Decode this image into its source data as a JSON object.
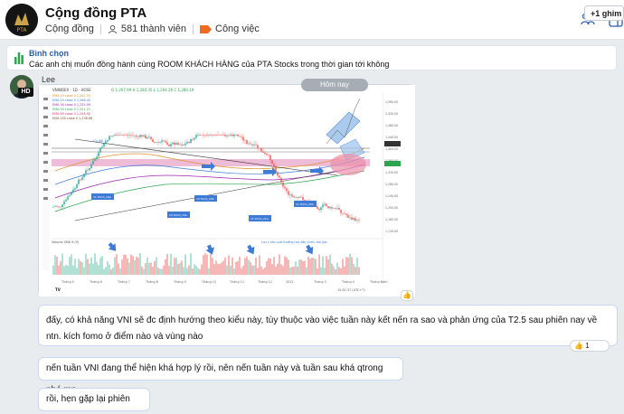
{
  "header": {
    "title": "Cộng đồng PTA",
    "type_label": "Cộng đồng",
    "members": "581 thành viên",
    "tasks": "Công việc",
    "logo_text": "PTA",
    "tasks_color": "#f26a21"
  },
  "poll": {
    "title": "Bình chọn",
    "question": "Các anh chị muốn đồng hành cùng ROOM KHÁCH HÀNG  của PTA Stocks trong thời gian tới không",
    "more": "+1 ghim"
  },
  "message": {
    "sender": "Lee",
    "avatar_badge": "HD",
    "date_divider": "Hôm nay",
    "image_reaction": "👍",
    "texts": [
      "đấy, có khả năng VNI sẽ đc định hướng theo kiểu này, tùy thuộc vào việc tuần này kết nến ra sao và phản ứng của T2.5 sau phiên nay về ntn. kích fomo ở điểm nào và vùng nào",
      "nến tuần VNI đang thể hiện khá hợp lý rồi, nên nến tuần này và tuần sau khá qtrong nhé mn",
      "rồi, hẹn gặp lại phiên mai"
    ],
    "reaction": "👍",
    "reaction_count": "1"
  },
  "chart_image": {
    "symbol_line": "VNINDEX · 1D · HOSE",
    "ohlc_line": "O 1,267.99  H 1,284.35  L 1,264.26  C 1,280.19",
    "ma_lines": [
      "EMA 10 close 0  1,262.55",
      "EMA 20 close 0  1,268.42",
      "EMA 34 close 0  1,255.09",
      "EMA 50 close 0  1,251.21",
      "EMA 89 close 0  1,248.92",
      "EMA 200 close 0  1,238.88"
    ],
    "annot_tl": "Ưu đãi 1",
    "annot_boxes": [
      "13 thinh_18a",
      "13 thinh_19a",
      "11 thinh_21a",
      "11 thinh_20a",
      "11 thinh_18a"
    ],
    "volume_label": "Volume  SMA 9 (9)",
    "volume_note": "Lưu ý xác suất thường hay đảo chiều vào giai",
    "x_ticks": [
      "Tháng 5",
      "Tháng 6",
      "Tháng 7",
      "Tháng 8",
      "Tháng 9",
      "Tháng 10",
      "Tháng 11",
      "Tháng 12",
      "2022",
      "Tháng 3",
      "Tháng 4",
      "Tháng Năm"
    ],
    "y_ticks": [
      "1,560.00",
      "1,520.00",
      "1,480.00",
      "1,440.00",
      "1,400.00",
      "1,360.00",
      "1,320.00",
      "1,280.00",
      "1,240.00",
      "1,200.00",
      "1,160.00",
      "1,120.00"
    ],
    "time_label": "15:51:37 (UTC+7)",
    "tv_logo": "TV"
  }
}
